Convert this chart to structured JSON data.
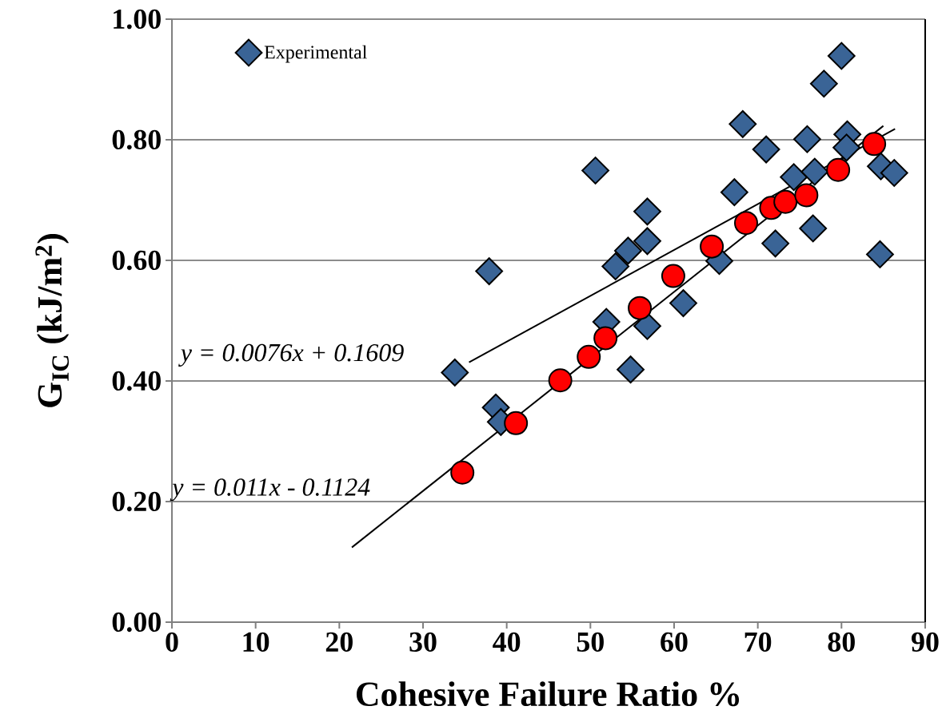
{
  "chart_data": {
    "type": "scatter",
    "xlabel": "Cohesive Failure Ratio %",
    "ylabel": "G$_{IC}$ (kJ/m$^{2}$)",
    "xlim": [
      0,
      90
    ],
    "ylim": [
      0,
      1
    ],
    "xticks": [
      0,
      10,
      20,
      30,
      40,
      50,
      60,
      70,
      80,
      90
    ],
    "yticks": [
      {
        "value": 0,
        "label": "0.00"
      },
      {
        "value": 0.2,
        "label": "0.20"
      },
      {
        "value": 0.4,
        "label": "0.40"
      },
      {
        "value": 0.6,
        "label": "0.60"
      },
      {
        "value": 0.8,
        "label": "0.80"
      },
      {
        "value": 1,
        "label": "1.00"
      }
    ],
    "grid": "y",
    "legend": "top left",
    "annotations": [
      "y = 0.0076x + 0.1609",
      "y = 0.011x - 0.1124"
    ],
    "series": [
      {
        "name": "Experimental",
        "marker": "diamond",
        "color": "#3a6496",
        "x": [
          33.8,
          37.9,
          38.7,
          39.3,
          50.6,
          56.8,
          56.8,
          54.5,
          53.0,
          51.9,
          56.8,
          61.1,
          54.8,
          80.0,
          77.9,
          68.2,
          71.0,
          75.9,
          80.7,
          80.6,
          67.2,
          74.3,
          76.8,
          84.7,
          86.3,
          72.1,
          76.6,
          84.6,
          65.4
        ],
        "values": [
          0.414,
          0.582,
          0.356,
          0.332,
          0.749,
          0.681,
          0.632,
          0.616,
          0.59,
          0.498,
          0.491,
          0.529,
          0.419,
          0.939,
          0.893,
          0.826,
          0.784,
          0.801,
          0.809,
          0.787,
          0.713,
          0.738,
          0.747,
          0.756,
          0.745,
          0.628,
          0.653,
          0.61,
          0.599
        ]
      },
      {
        "marker": "circle",
        "color": "#ff0000",
        "x": [
          34.7,
          41.1,
          46.4,
          49.8,
          51.8,
          55.9,
          59.9,
          64.5,
          68.6,
          71.6,
          73.3,
          75.8,
          79.6,
          83.9
        ],
        "values": [
          0.248,
          0.33,
          0.401,
          0.44,
          0.471,
          0.521,
          0.574,
          0.623,
          0.662,
          0.687,
          0.697,
          0.708,
          0.75,
          0.793
        ]
      },
      {
        "type": "line",
        "marker": "none",
        "color": "#000000",
        "x": [
          35.5,
          86.4
        ],
        "values": [
          0.431,
          0.818
        ]
      },
      {
        "type": "line",
        "marker": "none",
        "color": "#000000",
        "x": [
          21.5,
          85.0
        ],
        "values": [
          0.124,
          0.823
        ]
      }
    ]
  }
}
